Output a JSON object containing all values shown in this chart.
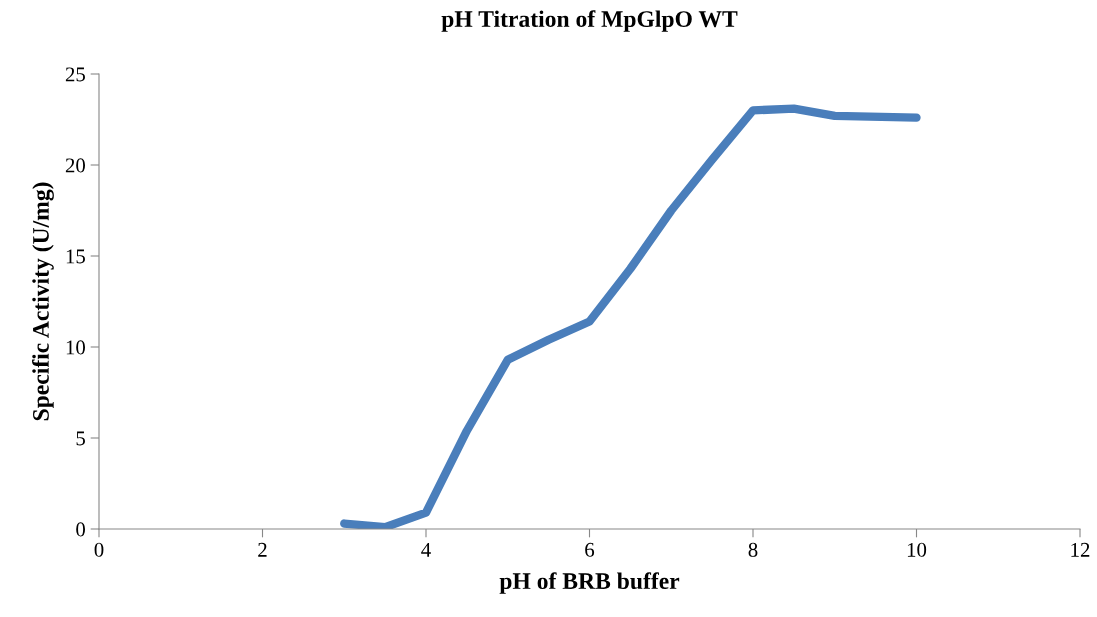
{
  "chart_data": {
    "type": "line",
    "title": "pH Titration of MpGlpO WT",
    "xlabel": "pH of BRB buffer",
    "ylabel": "Specific Activity (U/mg)",
    "x": [
      3,
      3.5,
      4,
      4.5,
      5,
      5.5,
      6,
      6.5,
      7,
      7.5,
      8,
      8.5,
      9,
      10
    ],
    "series": [
      {
        "color": "#4a7ebb",
        "values": [
          0.3,
          0.1,
          0.9,
          5.4,
          9.3,
          10.4,
          11.4,
          14.3,
          17.5,
          20.3,
          23.0,
          23.1,
          22.7,
          22.6
        ]
      }
    ],
    "xlim": [
      0,
      12
    ],
    "xticks": [
      0,
      2,
      4,
      6,
      8,
      10,
      12
    ],
    "ylim": [
      0,
      25
    ],
    "yticks": [
      0,
      5,
      10,
      15,
      20,
      25
    ],
    "grid": false,
    "legend": false,
    "marker": "none",
    "line_style": "solid"
  }
}
